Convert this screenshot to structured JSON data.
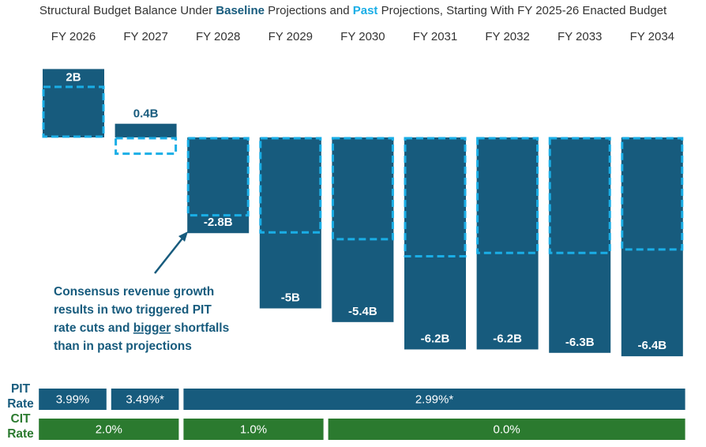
{
  "chart_data": {
    "type": "bar",
    "title_parts": [
      "Structural Budget Balance Under ",
      " Projections and ",
      " Projections, Starting With FY 2025-26 Enacted Budget"
    ],
    "categories": [
      "FY 2026",
      "FY 2027",
      "FY 2028",
      "FY 2029",
      "FY 2030",
      "FY 2031",
      "FY 2032",
      "FY 2033",
      "FY 2034"
    ],
    "series": [
      {
        "name": "Baseline",
        "color": "#175b7d",
        "style": "solid",
        "values": [
          2,
          0.4,
          -2.8,
          -5,
          -5.4,
          -6.2,
          -6.2,
          -6.3,
          -6.4
        ],
        "value_labels": [
          "2B",
          "0.4B",
          "-2.8B",
          "-5B",
          "-5.4B",
          "-6.2B",
          "-6.2B",
          "-6.3B",
          "-6.4B"
        ]
      },
      {
        "name": "Past",
        "color": "#1aaee6",
        "style": "dashed",
        "values": [
          1.5,
          -0.5,
          -2.3,
          -2.8,
          -3.0,
          -3.5,
          -3.4,
          -3.4,
          -3.3
        ]
      }
    ],
    "annotation": [
      [
        "Consensus revenue growth"
      ],
      [
        "results in two triggered PIT"
      ],
      [
        "rate cuts and ",
        {
          "text": "bigger",
          "underline": true
        },
        " shortfalls"
      ],
      [
        "than in past projections"
      ]
    ],
    "rate_rows": [
      {
        "label": [
          "PIT",
          "Rate"
        ],
        "color": "#175b7d",
        "segments": [
          {
            "label": "3.99%",
            "years": 1
          },
          {
            "label": "3.49%*",
            "years": 1
          },
          {
            "label": "2.99%*",
            "years": 7
          }
        ]
      },
      {
        "label": [
          "CIT",
          "Rate"
        ],
        "color": "#2b7a2f",
        "segments": [
          {
            "label": "2.0%",
            "years": 2
          },
          {
            "label": "1.0%",
            "years": 2
          },
          {
            "label": "0.0%",
            "years": 5
          }
        ]
      }
    ]
  }
}
